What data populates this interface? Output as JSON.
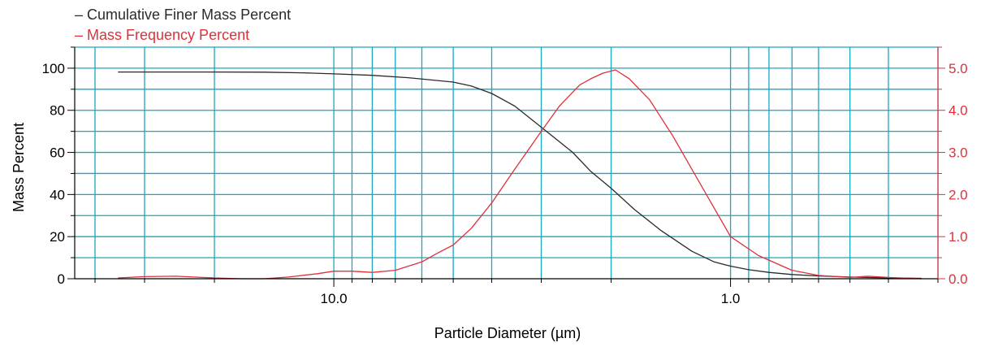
{
  "colors": {
    "grid": "#1aa6c0",
    "cumulative": "#2a2a2a",
    "frequency": "#e0303a",
    "axis": "#000000"
  },
  "chart_data": {
    "type": "line",
    "xlabel": "Particle Diameter (µm)",
    "x_axis": {
      "scale": "log",
      "reversed": true,
      "range": [
        45,
        0.3
      ]
    },
    "x_tick_labels": [
      {
        "value": 10,
        "label": "10.0"
      },
      {
        "value": 1,
        "label": "1.0"
      }
    ],
    "left_axis": {
      "label": "Mass Percent",
      "range": [
        0,
        110
      ],
      "ticks": [
        "0",
        "20",
        "40",
        "60",
        "80",
        "100"
      ]
    },
    "right_axis": {
      "range": [
        0,
        5.5
      ],
      "ticks": [
        "0.0",
        "1.0",
        "2.0",
        "3.0",
        "4.0",
        "5.0"
      ]
    },
    "grid": true,
    "legend": {
      "placement": "top-left"
    },
    "series": [
      {
        "name": "Cumulative Finer Mass Percent",
        "axis": "left",
        "color": "#2a2a2a",
        "points": [
          [
            35,
            98.2
          ],
          [
            25,
            98.2
          ],
          [
            20,
            98.2
          ],
          [
            15,
            98.1
          ],
          [
            12,
            97.8
          ],
          [
            10,
            97.3
          ],
          [
            8,
            96.6
          ],
          [
            6.5,
            95.5
          ],
          [
            5,
            93.4
          ],
          [
            4.5,
            91.5
          ],
          [
            4,
            88
          ],
          [
            3.5,
            82
          ],
          [
            3,
            72
          ],
          [
            2.5,
            60
          ],
          [
            2.25,
            51
          ],
          [
            2,
            43
          ],
          [
            1.75,
            33
          ],
          [
            1.5,
            23
          ],
          [
            1.25,
            13
          ],
          [
            1.1,
            8
          ],
          [
            1,
            6
          ],
          [
            0.9,
            4.3
          ],
          [
            0.8,
            3
          ],
          [
            0.7,
            2
          ],
          [
            0.6,
            1.3
          ],
          [
            0.5,
            0.8
          ],
          [
            0.4,
            0.4
          ],
          [
            0.33,
            0.2
          ]
        ]
      },
      {
        "name": "Mass Frequency Percent",
        "axis": "right",
        "color": "#e0303a",
        "points": [
          [
            35,
            0.02
          ],
          [
            30,
            0.05
          ],
          [
            25,
            0.06
          ],
          [
            20,
            0.02
          ],
          [
            17,
            0.0
          ],
          [
            15,
            0.0
          ],
          [
            13,
            0.04
          ],
          [
            11,
            0.12
          ],
          [
            10,
            0.18
          ],
          [
            9,
            0.18
          ],
          [
            8,
            0.15
          ],
          [
            7,
            0.2
          ],
          [
            6,
            0.4
          ],
          [
            5.5,
            0.6
          ],
          [
            5,
            0.8
          ],
          [
            4.5,
            1.2
          ],
          [
            4,
            1.8
          ],
          [
            3.5,
            2.6
          ],
          [
            3,
            3.5
          ],
          [
            2.7,
            4.1
          ],
          [
            2.4,
            4.6
          ],
          [
            2.25,
            4.75
          ],
          [
            2.1,
            4.88
          ],
          [
            1.95,
            4.96
          ],
          [
            1.8,
            4.75
          ],
          [
            1.6,
            4.25
          ],
          [
            1.4,
            3.4
          ],
          [
            1.2,
            2.3
          ],
          [
            1.0,
            1.0
          ],
          [
            0.85,
            0.55
          ],
          [
            0.7,
            0.2
          ],
          [
            0.6,
            0.08
          ],
          [
            0.5,
            0.03
          ],
          [
            0.45,
            0.06
          ],
          [
            0.4,
            0.03
          ],
          [
            0.33,
            0.0
          ]
        ]
      }
    ]
  }
}
